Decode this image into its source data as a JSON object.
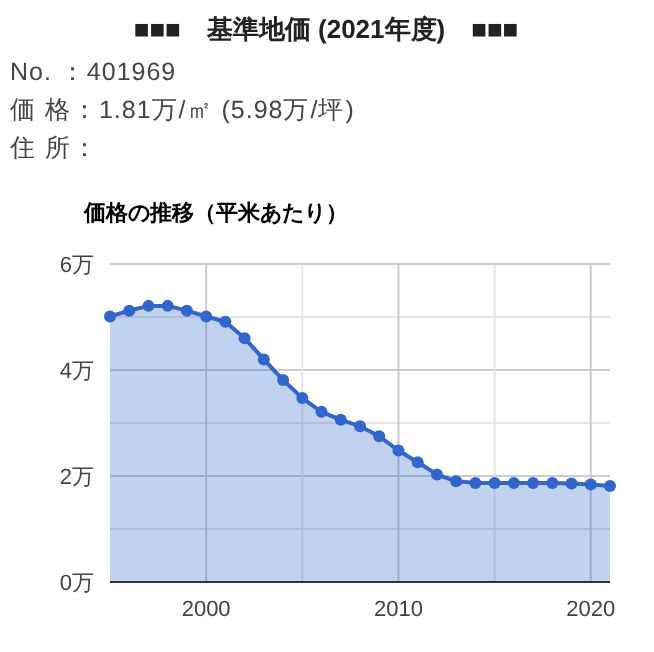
{
  "chart_data": {
    "type": "area",
    "title": "■■■　基準地価 (2021年度)　■■■",
    "annotations": [
      "No. ：401969",
      "価 格：1.81万/㎡ (5.98万/坪)",
      "住 所："
    ],
    "subtitle": "価格の推移（平米あたり）",
    "x": [
      1995,
      1996,
      1997,
      1998,
      1999,
      2000,
      2001,
      2002,
      2003,
      2004,
      2005,
      2006,
      2007,
      2008,
      2009,
      2010,
      2011,
      2012,
      2013,
      2014,
      2015,
      2016,
      2017,
      2018,
      2019,
      2020,
      2021
    ],
    "series": [
      {
        "color": "#3366cc",
        "values": [
          5.01,
          5.12,
          5.21,
          5.21,
          5.12,
          5.01,
          4.91,
          4.6,
          4.2,
          3.81,
          3.47,
          3.21,
          3.06,
          2.94,
          2.75,
          2.48,
          2.26,
          2.03,
          1.9,
          1.87,
          1.87,
          1.87,
          1.87,
          1.87,
          1.86,
          1.84,
          1.81
        ]
      }
    ],
    "xlim": [
      1995,
      2021
    ],
    "ylim": [
      0,
      6
    ],
    "xticks": [
      {
        "value": 2000,
        "label": "2000"
      },
      {
        "value": 2005,
        "label": null
      },
      {
        "value": 2010,
        "label": "2010"
      },
      {
        "value": 2015,
        "label": null
      },
      {
        "value": 2020,
        "label": "2020"
      }
    ],
    "yticks": [
      {
        "value": 0,
        "label": "0万"
      },
      {
        "value": 1,
        "label": null
      },
      {
        "value": 2,
        "label": "2万"
      },
      {
        "value": 3,
        "label": null
      },
      {
        "value": 4,
        "label": "4万"
      },
      {
        "value": 5,
        "label": null
      },
      {
        "value": 6,
        "label": "6万"
      }
    ],
    "grid": true,
    "marker": "circle",
    "line_style": "solid"
  }
}
